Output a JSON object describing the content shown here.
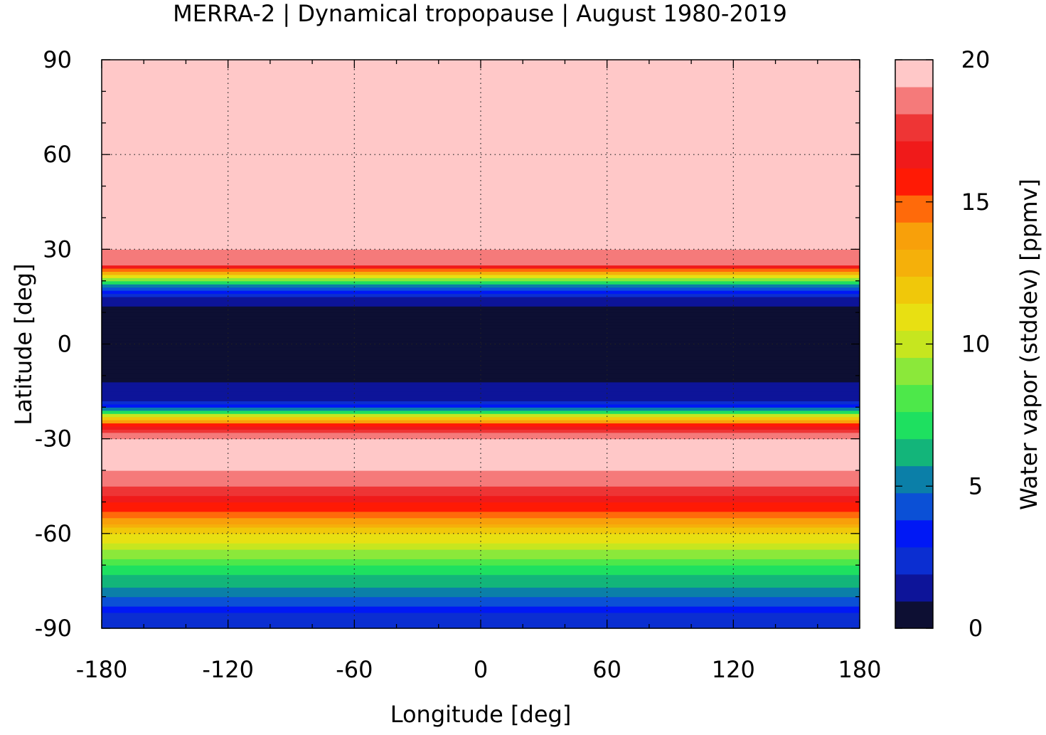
{
  "chart_data": {
    "type": "heatmap",
    "title": "MERRA-2 | Dynamical tropopause | August 1980-2019",
    "xlabel": "Longitude [deg]",
    "ylabel": "Latitude [deg]",
    "xlim": [
      -180,
      180
    ],
    "ylim": [
      -90,
      90
    ],
    "xticks": [
      -180,
      -120,
      -60,
      0,
      60,
      120,
      180
    ],
    "yticks": [
      -90,
      -60,
      -30,
      0,
      30,
      60,
      90
    ],
    "xtick_labels": [
      "-180",
      "-120",
      "-60",
      "0",
      "60",
      "120",
      "180"
    ],
    "ytick_labels": [
      "-90",
      "-60",
      "-30",
      "0",
      "30",
      "60",
      "90"
    ],
    "grid": true,
    "colorbar": {
      "label": "Water vapor (stddev) [ppmv]",
      "range": [
        0,
        20
      ],
      "ticks": [
        0,
        5,
        10,
        15,
        20
      ],
      "tick_labels": [
        "0",
        "5",
        "10",
        "15",
        "20"
      ],
      "colors": [
        "#0d0f33",
        "#0d1499",
        "#0b2ed1",
        "#0018f5",
        "#0b50d6",
        "#0b7fa8",
        "#13b57a",
        "#1ee060",
        "#4de84a",
        "#8be83a",
        "#c6e61f",
        "#e8e012",
        "#f0c80a",
        "#f5b00a",
        "#f8a00a",
        "#ff6a0a",
        "#ff1a05",
        "#f01a1a",
        "#ee3535",
        "#f57a7a",
        "#ffc8c8"
      ]
    },
    "latitude_profile": {
      "lat": [
        -90,
        -85,
        -80,
        -75,
        -70,
        -65,
        -60,
        -55,
        -50,
        -45,
        -40,
        -35,
        -30,
        -27,
        -24,
        -22,
        -20,
        -18,
        -15,
        -10,
        -5,
        0,
        5,
        10,
        13,
        16,
        19,
        22,
        25,
        30,
        40,
        60,
        90
      ],
      "stddev": [
        2,
        3,
        5,
        6.5,
        8,
        10,
        12,
        15,
        17,
        19,
        20,
        20,
        20,
        18,
        14,
        9,
        4,
        2,
        1.5,
        0.6,
        0.5,
        0.5,
        0.5,
        0.6,
        1.2,
        2.5,
        6,
        12,
        19,
        20,
        20,
        20,
        20
      ]
    }
  }
}
